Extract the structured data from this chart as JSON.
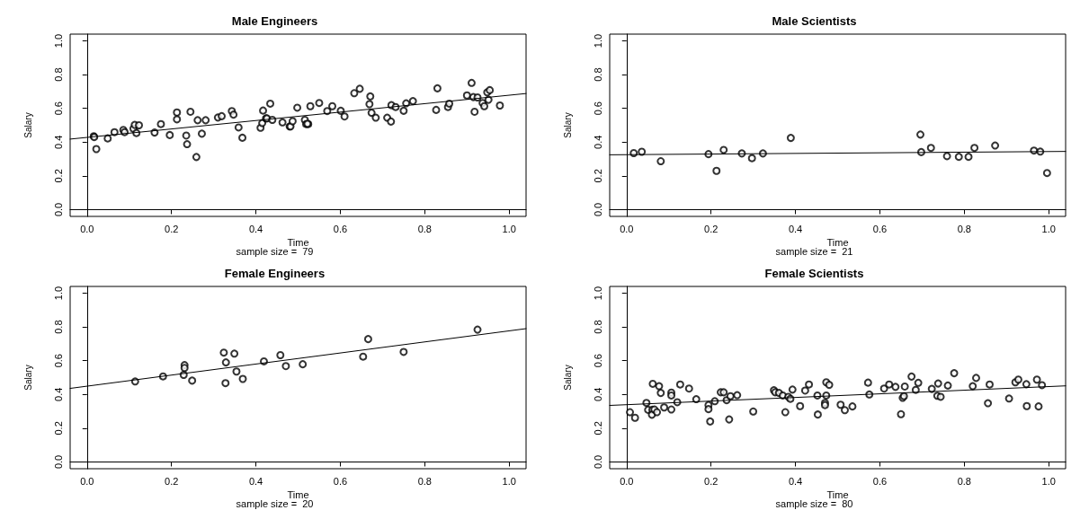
{
  "chart_data": [
    {
      "type": "scatter",
      "title": "Male Engineers",
      "xlabel": "Time",
      "ylabel": "Salary",
      "annotations": [
        "sample size =  79"
      ],
      "xlim": [
        -0.04,
        1.04
      ],
      "ylim": [
        -0.04,
        1.04
      ],
      "xticks": [
        {
          "value": 0,
          "label": "0.0"
        },
        {
          "value": 0.2,
          "label": "0.2"
        },
        {
          "value": 0.4,
          "label": "0.4"
        },
        {
          "value": 0.6,
          "label": "0.6"
        },
        {
          "value": 0.8,
          "label": "0.8"
        },
        {
          "value": 1,
          "label": "1.0"
        }
      ],
      "yticks": [
        {
          "value": 0,
          "label": "0.0"
        },
        {
          "value": 0.2,
          "label": "0.2"
        },
        {
          "value": 0.4,
          "label": "0.4"
        },
        {
          "value": 0.6,
          "label": "0.6"
        },
        {
          "value": 0.8,
          "label": "0.8"
        },
        {
          "value": 1,
          "label": "1.0"
        }
      ],
      "marker": "circle",
      "series": [
        {
          "color": "#000000",
          "x": [
            0.016,
            0.017,
            0.022,
            0.049,
            0.065,
            0.086,
            0.089,
            0.11,
            0.113,
            0.123,
            0.117,
            0.16,
            0.175,
            0.196,
            0.213,
            0.213,
            0.235,
            0.237,
            0.245,
            0.259,
            0.262,
            0.272,
            0.281,
            0.31,
            0.319,
            0.343,
            0.347,
            0.359,
            0.368,
            0.411,
            0.415,
            0.417,
            0.424,
            0.426,
            0.439,
            0.434,
            0.463,
            0.48,
            0.482,
            0.487,
            0.498,
            0.516,
            0.519,
            0.524,
            0.529,
            0.55,
            0.569,
            0.581,
            0.601,
            0.61,
            0.633,
            0.646,
            0.669,
            0.671,
            0.674,
            0.684,
            0.711,
            0.72,
            0.721,
            0.731,
            0.75,
            0.756,
            0.772,
            0.827,
            0.83,
            0.855,
            0.858,
            0.9,
            0.911,
            0.915,
            0.918,
            0.925,
            0.937,
            0.941,
            0.948,
            0.951,
            0.954,
            0.978,
            0.522
          ],
          "values": [
            0.435,
            0.43,
            0.359,
            0.422,
            0.459,
            0.472,
            0.459,
            0.48,
            0.502,
            0.5,
            0.454,
            0.457,
            0.507,
            0.442,
            0.576,
            0.535,
            0.439,
            0.388,
            0.58,
            0.312,
            0.53,
            0.45,
            0.53,
            0.546,
            0.554,
            0.584,
            0.563,
            0.487,
            0.426,
            0.485,
            0.513,
            0.587,
            0.541,
            0.541,
            0.532,
            0.628,
            0.517,
            0.493,
            0.493,
            0.524,
            0.604,
            0.532,
            0.507,
            0.507,
            0.613,
            0.632,
            0.584,
            0.613,
            0.586,
            0.552,
            0.69,
            0.716,
            0.625,
            0.671,
            0.574,
            0.545,
            0.545,
            0.522,
            0.619,
            0.608,
            0.586,
            0.63,
            0.643,
            0.591,
            0.719,
            0.608,
            0.628,
            0.677,
            0.751,
            0.667,
            0.58,
            0.665,
            0.632,
            0.613,
            0.695,
            0.651,
            0.708,
            0.617,
            0.509
          ]
        },
        {
          "type": "line",
          "marker": "none",
          "color": "#000000",
          "x": [
            -0.04,
            1.04
          ],
          "values": [
            0.418,
            0.688
          ]
        }
      ]
    },
    {
      "type": "scatter",
      "title": "Male Scientists",
      "xlabel": "Time",
      "ylabel": "Salary",
      "annotations": [
        "sample size =  21"
      ],
      "xlim": [
        -0.04,
        1.04
      ],
      "ylim": [
        -0.04,
        1.04
      ],
      "xticks": [
        {
          "value": 0,
          "label": "0.0"
        },
        {
          "value": 0.2,
          "label": "0.2"
        },
        {
          "value": 0.4,
          "label": "0.4"
        },
        {
          "value": 0.6,
          "label": "0.6"
        },
        {
          "value": 0.8,
          "label": "0.8"
        },
        {
          "value": 1,
          "label": "1.0"
        }
      ],
      "yticks": [
        {
          "value": 0,
          "label": "0.0"
        },
        {
          "value": 0.2,
          "label": "0.2"
        },
        {
          "value": 0.4,
          "label": "0.4"
        },
        {
          "value": 0.6,
          "label": "0.6"
        },
        {
          "value": 0.8,
          "label": "0.8"
        },
        {
          "value": 1,
          "label": "1.0"
        }
      ],
      "marker": "circle",
      "series": [
        {
          "color": "#000000",
          "x": [
            0.017,
            0.036,
            0.081,
            0.194,
            0.213,
            0.23,
            0.273,
            0.297,
            0.323,
            0.389,
            0.696,
            0.698,
            0.721,
            0.759,
            0.787,
            0.81,
            0.824,
            0.873,
            0.965,
            0.98,
            0.996
          ],
          "values": [
            0.335,
            0.343,
            0.287,
            0.329,
            0.23,
            0.354,
            0.333,
            0.305,
            0.333,
            0.425,
            0.445,
            0.341,
            0.366,
            0.317,
            0.313,
            0.313,
            0.366,
            0.38,
            0.35,
            0.344,
            0.217
          ]
        },
        {
          "type": "line",
          "marker": "none",
          "color": "#000000",
          "x": [
            -0.04,
            1.04
          ],
          "values": [
            0.325,
            0.345
          ]
        }
      ]
    },
    {
      "type": "scatter",
      "title": "Female Engineers",
      "xlabel": "Time",
      "ylabel": "Salary",
      "annotations": [
        "sample size =  20"
      ],
      "xlim": [
        -0.04,
        1.04
      ],
      "ylim": [
        -0.04,
        1.04
      ],
      "xticks": [
        {
          "value": 0,
          "label": "0.0"
        },
        {
          "value": 0.2,
          "label": "0.2"
        },
        {
          "value": 0.4,
          "label": "0.4"
        },
        {
          "value": 0.6,
          "label": "0.6"
        },
        {
          "value": 0.8,
          "label": "0.8"
        },
        {
          "value": 1,
          "label": "1.0"
        }
      ],
      "yticks": [
        {
          "value": 0,
          "label": "0.0"
        },
        {
          "value": 0.2,
          "label": "0.2"
        },
        {
          "value": 0.4,
          "label": "0.4"
        },
        {
          "value": 0.6,
          "label": "0.6"
        },
        {
          "value": 0.8,
          "label": "0.8"
        },
        {
          "value": 1,
          "label": "1.0"
        }
      ],
      "marker": "circle",
      "series": [
        {
          "color": "#000000",
          "x": [
            0.114,
            0.18,
            0.229,
            0.231,
            0.231,
            0.249,
            0.324,
            0.329,
            0.328,
            0.349,
            0.354,
            0.369,
            0.419,
            0.458,
            0.471,
            0.511,
            0.654,
            0.666,
            0.75,
            0.925
          ],
          "values": [
            0.477,
            0.507,
            0.516,
            0.574,
            0.557,
            0.482,
            0.648,
            0.59,
            0.467,
            0.642,
            0.536,
            0.492,
            0.596,
            0.633,
            0.568,
            0.579,
            0.624,
            0.728,
            0.652,
            0.784
          ]
        },
        {
          "type": "line",
          "marker": "none",
          "color": "#000000",
          "x": [
            -0.04,
            1.04
          ],
          "values": [
            0.436,
            0.79
          ]
        }
      ]
    },
    {
      "type": "scatter",
      "title": "Female Scientists",
      "xlabel": "Time",
      "ylabel": "Salary",
      "annotations": [
        "sample size =  80"
      ],
      "xlim": [
        -0.04,
        1.04
      ],
      "ylim": [
        -0.04,
        1.04
      ],
      "xticks": [
        {
          "value": 0,
          "label": "0.0"
        },
        {
          "value": 0.2,
          "label": "0.2"
        },
        {
          "value": 0.4,
          "label": "0.4"
        },
        {
          "value": 0.6,
          "label": "0.6"
        },
        {
          "value": 0.8,
          "label": "0.8"
        },
        {
          "value": 1,
          "label": "1.0"
        }
      ],
      "yticks": [
        {
          "value": 0,
          "label": "0.0"
        },
        {
          "value": 0.2,
          "label": "0.2"
        },
        {
          "value": 0.4,
          "label": "0.4"
        },
        {
          "value": 0.6,
          "label": "0.6"
        },
        {
          "value": 0.8,
          "label": "0.8"
        },
        {
          "value": 1,
          "label": "1.0"
        }
      ],
      "marker": "circle",
      "series": [
        {
          "color": "#000000",
          "x": [
            0.008,
            0.02,
            0.047,
            0.051,
            0.061,
            0.06,
            0.062,
            0.066,
            0.072,
            0.077,
            0.081,
            0.089,
            0.106,
            0.106,
            0.106,
            0.12,
            0.127,
            0.148,
            0.165,
            0.194,
            0.194,
            0.198,
            0.209,
            0.223,
            0.23,
            0.237,
            0.243,
            0.246,
            0.262,
            0.3,
            0.349,
            0.352,
            0.361,
            0.37,
            0.376,
            0.383,
            0.388,
            0.393,
            0.411,
            0.423,
            0.432,
            0.452,
            0.453,
            0.47,
            0.47,
            0.473,
            0.473,
            0.48,
            0.507,
            0.517,
            0.535,
            0.572,
            0.575,
            0.61,
            0.622,
            0.637,
            0.65,
            0.654,
            0.657,
            0.659,
            0.675,
            0.685,
            0.691,
            0.723,
            0.736,
            0.738,
            0.744,
            0.761,
            0.776,
            0.82,
            0.828,
            0.856,
            0.86,
            0.906,
            0.921,
            0.928,
            0.947,
            0.948,
            0.972,
            0.976,
            0.984
          ],
          "values": [
            0.295,
            0.262,
            0.35,
            0.309,
            0.309,
            0.28,
            0.463,
            0.311,
            0.295,
            0.449,
            0.409,
            0.323,
            0.411,
            0.394,
            0.311,
            0.354,
            0.459,
            0.435,
            0.372,
            0.337,
            0.313,
            0.24,
            0.36,
            0.413,
            0.413,
            0.366,
            0.252,
            0.39,
            0.396,
            0.299,
            0.425,
            0.413,
            0.409,
            0.394,
            0.295,
            0.386,
            0.374,
            0.429,
            0.331,
            0.423,
            0.459,
            0.394,
            0.281,
            0.35,
            0.337,
            0.472,
            0.394,
            0.457,
            0.339,
            0.307,
            0.329,
            0.47,
            0.4,
            0.435,
            0.459,
            0.445,
            0.283,
            0.38,
            0.39,
            0.447,
            0.506,
            0.427,
            0.469,
            0.433,
            0.392,
            0.465,
            0.386,
            0.453,
            0.526,
            0.449,
            0.498,
            0.348,
            0.459,
            0.376,
            0.472,
            0.488,
            0.461,
            0.331,
            0.488,
            0.329,
            0.455
          ]
        },
        {
          "type": "line",
          "marker": "none",
          "color": "#000000",
          "x": [
            -0.04,
            1.04
          ],
          "values": [
            0.335,
            0.451
          ]
        }
      ]
    }
  ]
}
